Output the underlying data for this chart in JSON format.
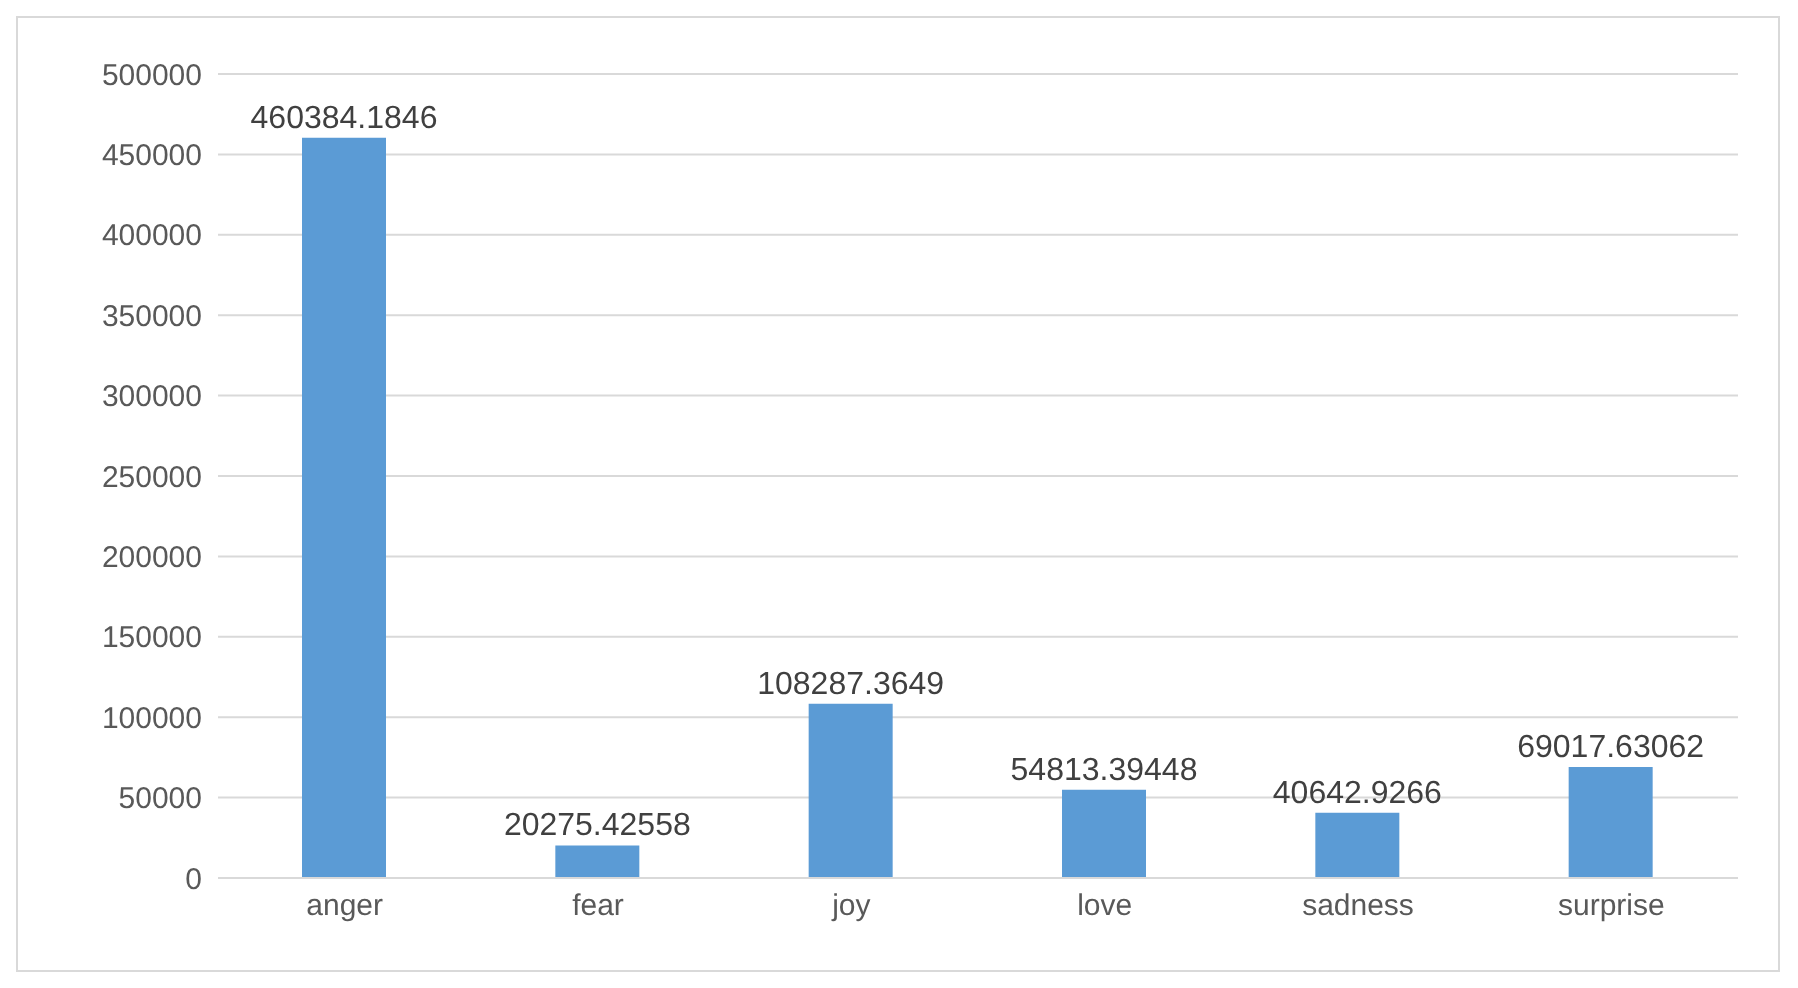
{
  "chart_data": {
    "type": "bar",
    "categories": [
      "anger",
      "fear",
      "joy",
      "love",
      "sadness",
      "surprise"
    ],
    "values": [
      460384.1846,
      20275.42558,
      108287.3649,
      54813.39448,
      40642.9266,
      69017.63062
    ],
    "color": "#5b9bd5",
    "ylim": [
      0,
      500000
    ],
    "yticks": [
      0,
      50000,
      100000,
      150000,
      200000,
      250000,
      300000,
      350000,
      400000,
      450000,
      500000
    ],
    "grid": "y",
    "data_labels": true
  }
}
